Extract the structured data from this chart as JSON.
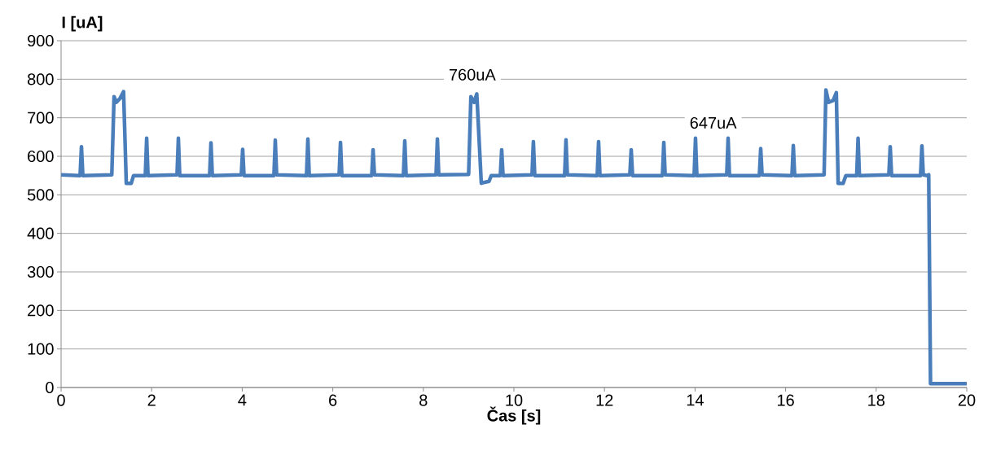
{
  "chart_data": {
    "type": "line",
    "xlabel": "Čas [s]",
    "ylabel": "I [uA]",
    "xlim": [
      0,
      20
    ],
    "xticks": [
      0,
      2,
      4,
      6,
      8,
      10,
      12,
      14,
      16,
      18,
      20
    ],
    "ylim": [
      0,
      900
    ],
    "yticks": [
      0,
      100,
      200,
      300,
      400,
      500,
      600,
      700,
      800,
      900
    ],
    "grid": "y",
    "marker": "none",
    "line_style": "solid",
    "annotations": [
      "760uA",
      "647uA"
    ],
    "series": [
      {
        "color": "#4a7ebb",
        "x": [
          0,
          0.42,
          0.45,
          0.48,
          1.12,
          1.17,
          1.22,
          1.3,
          1.38,
          1.44,
          1.55,
          1.6,
          1.86,
          1.89,
          1.92,
          2.56,
          2.59,
          2.62,
          3.28,
          3.31,
          3.34,
          3.98,
          4.01,
          4.04,
          4.7,
          4.73,
          4.76,
          5.42,
          5.45,
          5.48,
          6.14,
          6.17,
          6.2,
          6.86,
          6.89,
          6.92,
          7.56,
          7.59,
          7.62,
          8.28,
          8.31,
          8.34,
          9.0,
          9.05,
          9.12,
          9.18,
          9.28,
          9.33,
          9.45,
          9.5,
          9.7,
          9.73,
          9.76,
          10.4,
          10.43,
          10.46,
          11.12,
          11.15,
          11.18,
          11.84,
          11.87,
          11.9,
          12.56,
          12.59,
          12.62,
          13.28,
          13.31,
          13.34,
          13.98,
          14.01,
          14.04,
          14.7,
          14.73,
          14.76,
          15.42,
          15.45,
          15.48,
          16.14,
          16.17,
          16.2,
          16.85,
          16.89,
          16.95,
          17.05,
          17.12,
          17.16,
          17.27,
          17.33,
          17.57,
          17.6,
          17.63,
          18.28,
          18.31,
          18.34,
          18.98,
          19.01,
          19.04,
          19.13,
          19.16,
          19.2,
          19.5,
          20.0
        ],
        "values": [
          552,
          550,
          625,
          550,
          552,
          755,
          740,
          750,
          768,
          530,
          530,
          550,
          550,
          647,
          550,
          552,
          647,
          550,
          550,
          635,
          550,
          552,
          618,
          550,
          550,
          642,
          552,
          550,
          645,
          550,
          552,
          636,
          550,
          550,
          617,
          552,
          550,
          640,
          550,
          552,
          645,
          552,
          553,
          755,
          740,
          762,
          530,
          532,
          535,
          550,
          550,
          617,
          550,
          552,
          638,
          550,
          550,
          643,
          552,
          550,
          638,
          550,
          552,
          617,
          550,
          550,
          636,
          552,
          550,
          647,
          550,
          552,
          647,
          550,
          550,
          620,
          552,
          550,
          628,
          550,
          552,
          772,
          740,
          745,
          765,
          530,
          530,
          550,
          550,
          647,
          550,
          552,
          625,
          550,
          550,
          627,
          552,
          550,
          552,
          10,
          10,
          10
        ]
      }
    ]
  }
}
